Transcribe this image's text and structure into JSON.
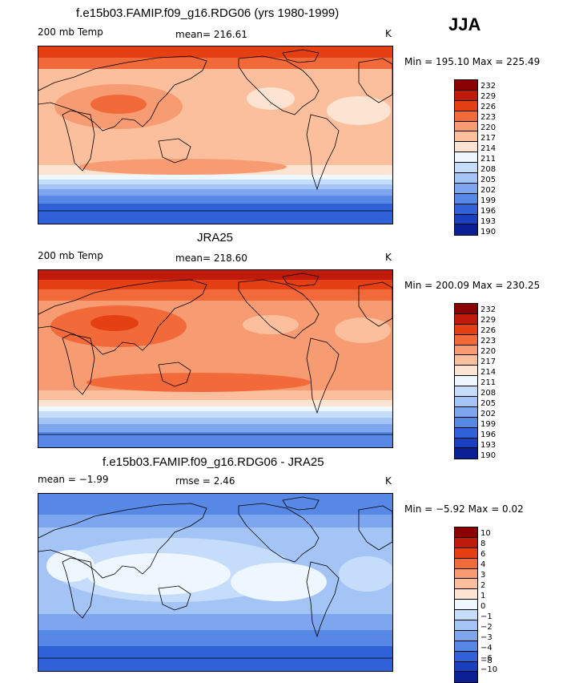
{
  "season": "JJA",
  "panels": [
    {
      "title": "f.e15b03.FAMIP.f09_g16.RDG06 (yrs 1980-1999)",
      "left_label": "200 mb Temp",
      "center_label": "mean= 216.61",
      "right_label": "K",
      "min_max": "Min = 195.10 Max = 225.49",
      "levels": [
        "232",
        "229",
        "226",
        "223",
        "220",
        "217",
        "214",
        "211",
        "208",
        "205",
        "202",
        "199",
        "196",
        "193",
        "190"
      ],
      "colors": [
        "#8b0000",
        "#c01b0a",
        "#e53f14",
        "#f26a3a",
        "#f79b72",
        "#fbbf9d",
        "#fde3d2",
        "#eef6ff",
        "#c6dcfb",
        "#a3c4f4",
        "#7ea6ee",
        "#5888e6",
        "#3061d8",
        "#1a40c0",
        "#0a1f93"
      ]
    },
    {
      "title": "JRA25",
      "left_label": "200 mb Temp",
      "center_label": "mean= 218.60",
      "right_label": "K",
      "min_max": "Min = 200.09 Max = 230.25",
      "levels": [
        "232",
        "229",
        "226",
        "223",
        "220",
        "217",
        "214",
        "211",
        "208",
        "205",
        "202",
        "199",
        "196",
        "193",
        "190"
      ],
      "colors": [
        "#8b0000",
        "#c01b0a",
        "#e53f14",
        "#f26a3a",
        "#f79b72",
        "#fbbf9d",
        "#fde3d2",
        "#eef6ff",
        "#c6dcfb",
        "#a3c4f4",
        "#7ea6ee",
        "#5888e6",
        "#3061d8",
        "#1a40c0",
        "#0a1f93"
      ]
    },
    {
      "title": "f.e15b03.FAMIP.f09_g16.RDG06 - JRA25",
      "left_label": "mean =  −1.99",
      "center_label": "rmse =   2.46",
      "right_label": "K",
      "min_max": "Min =  −5.92 Max =   0.02",
      "levels": [
        "10",
        "8",
        "6",
        "4",
        "3",
        "2",
        "1",
        "0",
        "−1",
        "−2",
        "−3",
        "−4",
        "−6",
        "−8",
        "−10"
      ],
      "colors": [
        "#8b0000",
        "#c01b0a",
        "#e53f14",
        "#f26a3a",
        "#f79b72",
        "#fbbf9d",
        "#fde3d2",
        "#eef6ff",
        "#c6dcfb",
        "#a3c4f4",
        "#7ea6ee",
        "#5888e6",
        "#3061d8",
        "#1a40c0",
        "#0a1f93"
      ]
    }
  ]
}
